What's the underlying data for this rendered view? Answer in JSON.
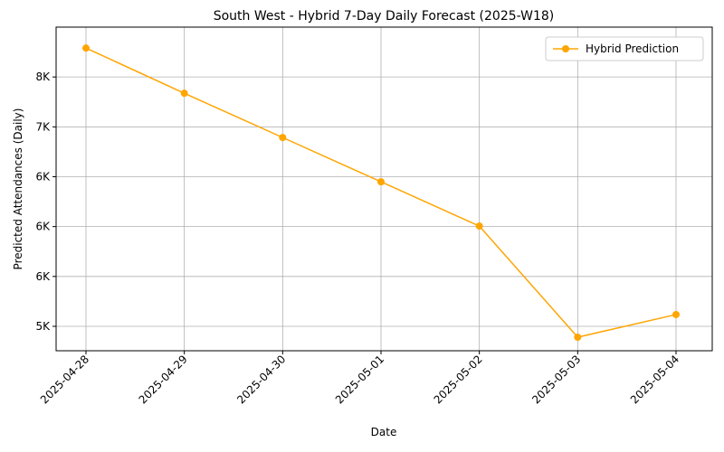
{
  "chart_data": {
    "type": "line",
    "title": "South West - Hybrid 7-Day Daily Forecast (2025-W18)",
    "x_label": "Date",
    "y_label": "Predicted Attendances (Daily)",
    "categories": [
      "2025-04-28",
      "2025-04-29",
      "2025-04-30",
      "2025-05-01",
      "2025-05-02",
      "2025-05-03",
      "2025-05-04"
    ],
    "series": [
      {
        "name": "Hybrid Prediction",
        "color": "#ffa500",
        "values": [
          7790,
          7337,
          6893,
          6449,
          6005,
          4891,
          5118
        ]
      }
    ],
    "ylim": [
      4755,
      8000
    ],
    "yticks": [
      {
        "value": 5000,
        "label": "5K"
      },
      {
        "value": 5500,
        "label": "6K"
      },
      {
        "value": 6000,
        "label": "6K"
      },
      {
        "value": 6500,
        "label": "6K"
      },
      {
        "value": 7000,
        "label": "7K"
      },
      {
        "value": 7500,
        "label": "8K"
      }
    ],
    "grid": true,
    "legend": "upper right",
    "markers": true
  }
}
